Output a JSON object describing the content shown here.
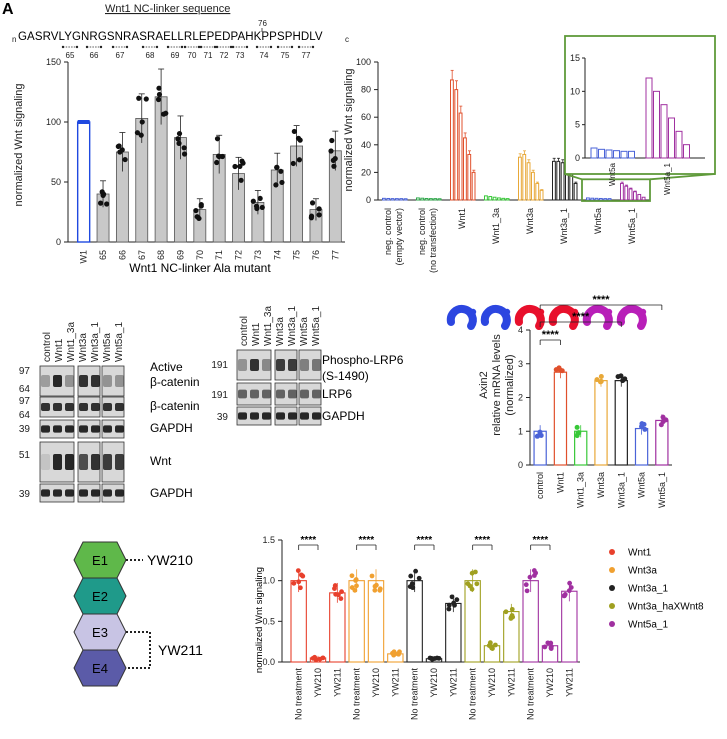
{
  "panel_letter": "A",
  "linker": {
    "title": "Wnt1 NC-linker sequence",
    "prefix": "n",
    "sequence": "GASRVLYGNRGSNRASRAELLRLEPEDPAHKPPSPHDLV",
    "suffix": "c",
    "marker_76": "76",
    "positions": [
      "65",
      "66",
      "67",
      "68",
      "69",
      "70",
      "71",
      "72",
      "73",
      "74",
      "75",
      "77"
    ]
  },
  "chart_data": [
    {
      "type": "bar",
      "id": "ala_scan",
      "title": "",
      "xlabel": "Wnt1 NC-linker  Ala mutant",
      "ylabel": "normalized Wnt signaling",
      "ylim": [
        0,
        150
      ],
      "yticks": [
        "0",
        "50",
        "100",
        "150"
      ],
      "categories": [
        "W1",
        "65",
        "66",
        "67",
        "68",
        "69",
        "70",
        "71",
        "72",
        "73",
        "74",
        "75",
        "76",
        "77"
      ],
      "values": [
        100,
        40,
        75,
        103,
        121,
        87,
        27,
        73,
        57,
        33,
        60,
        80,
        27,
        76
      ],
      "colors": [
        "#1f49e0",
        "#c8c8c8",
        "#c8c8c8",
        "#c8c8c8",
        "#c8c8c8",
        "#c8c8c8",
        "#c8c8c8",
        "#c8c8c8",
        "#c8c8c8",
        "#c8c8c8",
        "#c8c8c8",
        "#c8c8c8",
        "#c8c8c8",
        "#c8c8c8"
      ]
    },
    {
      "type": "bar",
      "id": "dose_series",
      "ylabel": "normalized Wnt signaling",
      "ylim": [
        0,
        100
      ],
      "yticks": [
        "0",
        "20",
        "40",
        "60",
        "80",
        "100"
      ],
      "categories": [
        "neg. control (empty vector)",
        "neg. control (no transfection)",
        "Wnt1",
        "Wnt1_3a",
        "Wnt3a",
        "Wnt3a_1",
        "Wnt5a",
        "Wnt5a_1"
      ],
      "category_lines": [
        [
          "neg. control",
          "(empty vector)"
        ],
        [
          "neg. control",
          "(no transfection)"
        ],
        [
          "Wnt1"
        ],
        [
          "Wnt1_3a"
        ],
        [
          "Wnt3a"
        ],
        [
          "Wnt3a_1"
        ],
        [
          "Wnt5a"
        ],
        [
          "Wnt5a_1"
        ]
      ],
      "colors": [
        "#4a63d8",
        "#2ea84a",
        "#e0502c",
        "#38c838",
        "#e8a838",
        "#222222",
        "#4a63d8",
        "#a030a0"
      ],
      "groups": [
        [
          1.2,
          1.1,
          1.0,
          1.0,
          1.0,
          0.9
        ],
        [
          1.5,
          1.3,
          1.1,
          1.0,
          1.0,
          0.9
        ],
        [
          87,
          80,
          63,
          45,
          33,
          20
        ],
        [
          3,
          2.5,
          2,
          1.5,
          1.2,
          1
        ],
        [
          31,
          33,
          27,
          20,
          12,
          7
        ],
        [
          28,
          28,
          27,
          24,
          19,
          12
        ],
        [
          1.5,
          1.3,
          1.2,
          1.1,
          1.0,
          1.0
        ],
        [
          12,
          10,
          8,
          6,
          4,
          2
        ]
      ],
      "inset": {
        "ylim": [
          0,
          15
        ],
        "yticks": [
          "0",
          "5",
          "10",
          "15"
        ],
        "categories": [
          "Wnt5a",
          "Wnt5a_1"
        ],
        "groups": [
          [
            1.5,
            1.3,
            1.2,
            1.1,
            1.0,
            1.0
          ],
          [
            12,
            10,
            8,
            6,
            4,
            2
          ]
        ],
        "colors": [
          "#4a63d8",
          "#a030a0"
        ]
      },
      "icon_colors": [
        "#2c46e0",
        "#2c46e0",
        "#e8102c",
        "#e8102c",
        "#b81fb8",
        "#b81fb8"
      ]
    },
    {
      "type": "bar",
      "id": "axin2",
      "ylabel": "Axin2\nrelative mRNA levels\n(normalized)",
      "ylabel_lines": [
        "Axin2",
        "relative mRNA levels",
        "(normalized)"
      ],
      "ylim": [
        0,
        4
      ],
      "yticks": [
        "0",
        "1",
        "2",
        "3",
        "4"
      ],
      "categories": [
        "control",
        "Wnt1",
        "Wnt1_3a",
        "Wnt3a",
        "Wnt3a_1",
        "Wnt5a",
        "Wnt5a_1"
      ],
      "values": [
        1.0,
        2.75,
        1.0,
        2.5,
        2.5,
        1.08,
        1.32
      ],
      "colors": [
        "#4a63d8",
        "#e0502c",
        "#38c838",
        "#e8a838",
        "#222222",
        "#4a63d8",
        "#a030a0"
      ],
      "significance": "****"
    },
    {
      "type": "bar",
      "id": "antibody",
      "ylabel": "normalized Wnt signaling",
      "ylim": [
        0,
        1.5
      ],
      "yticks": [
        "0.0",
        "0.5",
        "1.0",
        "1.5"
      ],
      "treatments": [
        "No treatment",
        "YW210",
        "YW211"
      ],
      "series": [
        {
          "name": "Wnt1",
          "color": "#e8402c",
          "values": [
            1.0,
            0.05,
            0.85
          ]
        },
        {
          "name": "Wnt3a",
          "color": "#f0a030",
          "values": [
            1.0,
            1.0,
            0.1
          ]
        },
        {
          "name": "Wnt3a_1",
          "color": "#222222",
          "values": [
            1.0,
            0.04,
            0.72
          ]
        },
        {
          "name": "Wnt3a_haXWnt8",
          "color": "#a0a020",
          "values": [
            1.0,
            0.2,
            0.62
          ]
        },
        {
          "name": "Wnt5a_1",
          "color": "#a030a0",
          "values": [
            1.0,
            0.2,
            0.87
          ]
        }
      ],
      "significance": "****"
    }
  ],
  "blots": {
    "left": {
      "lanes": [
        "control",
        "Wnt1",
        "Wnt1_3a",
        "Wnt3a",
        "Wnt3a_1",
        "Wnt5a",
        "Wnt5a_1"
      ],
      "markers": [
        "97",
        "64",
        "97",
        "64",
        "39",
        "51",
        "39"
      ],
      "labels": [
        "Active",
        "β-catenin",
        "β-catenin",
        "GAPDH",
        "Wnt",
        "GAPDH"
      ]
    },
    "middle": {
      "lanes": [
        "control",
        "Wnt1",
        "Wnt1_3a",
        "Wnt3a",
        "Wnt3a_1",
        "Wnt5a",
        "Wnt5a_1"
      ],
      "markers": [
        "191",
        "191",
        "39"
      ],
      "labels": [
        "Phospho-LRP6",
        "(S-1490)",
        "LRP6",
        "GAPDH"
      ]
    }
  },
  "domains": {
    "items": [
      "E1",
      "E2",
      "E3",
      "E4"
    ],
    "colors": [
      "#5fb84a",
      "#1f9a8a",
      "#c8c4e4",
      "#5b5ba8"
    ],
    "ab1": "YW210",
    "ab2": "YW211"
  }
}
